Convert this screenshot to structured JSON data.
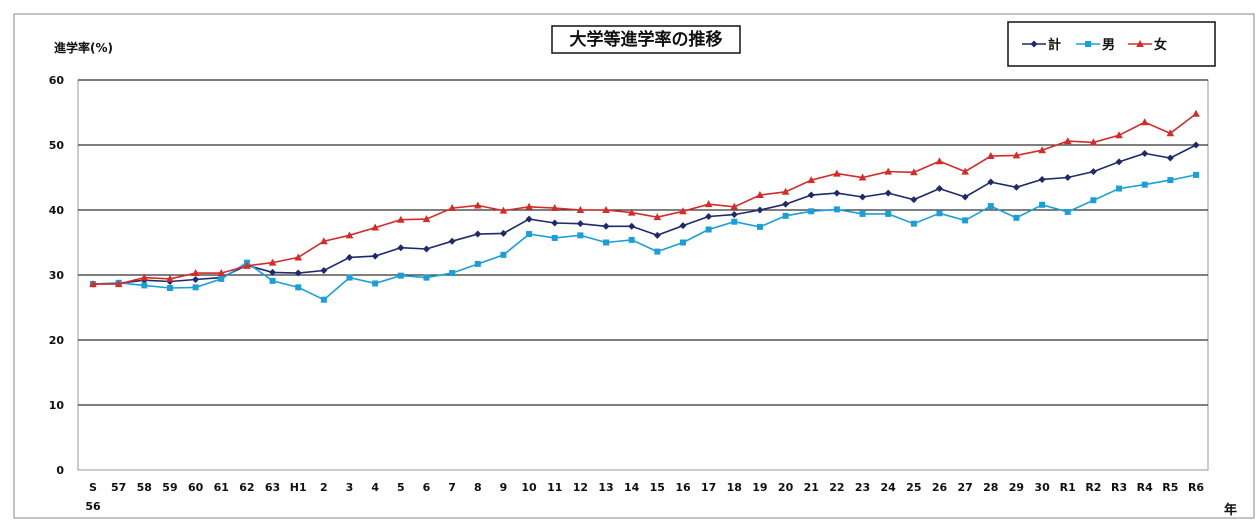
{
  "chart_data": {
    "type": "line",
    "title": "大学等進学率の推移",
    "ylabel": "進学率(%)",
    "xlabel": "年",
    "ylim": [
      0,
      60
    ],
    "yticks": [
      "0",
      "10",
      "20",
      "30",
      "40",
      "50",
      "60"
    ],
    "grid": true,
    "legend_position": "top-right",
    "categories": [
      "S 56",
      "57",
      "58",
      "59",
      "60",
      "61",
      "62",
      "63",
      "H1",
      "2",
      "3",
      "4",
      "5",
      "6",
      "7",
      "8",
      "9",
      "10",
      "11",
      "12",
      "13",
      "14",
      "15",
      "16",
      "17",
      "18",
      "19",
      "20",
      "21",
      "22",
      "23",
      "24",
      "25",
      "26",
      "27",
      "28",
      "29",
      "30",
      "R1",
      "R2",
      "R3",
      "R4",
      "R5",
      "R6"
    ],
    "category_labels": [
      "S",
      "57",
      "58",
      "59",
      "60",
      "61",
      "62",
      "63",
      "H1",
      "2",
      "3",
      "4",
      "5",
      "6",
      "7",
      "8",
      "9",
      "10",
      "11",
      "12",
      "13",
      "14",
      "15",
      "16",
      "17",
      "18",
      "19",
      "20",
      "21",
      "22",
      "23",
      "24",
      "25",
      "26",
      "27",
      "28",
      "29",
      "30",
      "R1",
      "R2",
      "R3",
      "R4",
      "R5",
      "R6"
    ],
    "first_category_sublabel": "56",
    "series": [
      {
        "name": "計",
        "color": "#1f2a6b",
        "marker": "diamond",
        "values": [
          28.6,
          28.7,
          29.2,
          29.0,
          29.3,
          29.6,
          31.5,
          30.4,
          30.3,
          30.7,
          32.7,
          32.9,
          34.2,
          34.0,
          35.2,
          36.3,
          36.4,
          38.6,
          38.0,
          37.9,
          37.5,
          37.5,
          36.1,
          37.6,
          39.0,
          39.3,
          40.0,
          40.9,
          42.3,
          42.6,
          42.0,
          42.6,
          41.6,
          43.3,
          42.0,
          44.3,
          43.5,
          44.7,
          45.0,
          45.9,
          47.4,
          48.7,
          48.0,
          50.0
        ]
      },
      {
        "name": "男",
        "color": "#1a9fd9",
        "marker": "square",
        "values": [
          28.6,
          28.8,
          28.4,
          28.0,
          28.1,
          29.4,
          31.9,
          29.1,
          28.1,
          26.2,
          29.6,
          28.7,
          29.9,
          29.6,
          30.3,
          31.7,
          33.1,
          36.3,
          35.7,
          36.1,
          35.0,
          35.4,
          33.6,
          35.0,
          37.0,
          38.2,
          37.4,
          39.1,
          39.8,
          40.1,
          39.4,
          39.4,
          37.9,
          39.5,
          38.4,
          40.6,
          38.8,
          40.8,
          39.7,
          41.5,
          43.3,
          43.9,
          44.6,
          45.4
        ]
      },
      {
        "name": "女",
        "color": "#d42b2b",
        "marker": "triangle",
        "values": [
          28.6,
          28.6,
          29.6,
          29.4,
          30.3,
          30.3,
          31.4,
          31.9,
          32.7,
          35.2,
          36.1,
          37.3,
          38.5,
          38.6,
          40.3,
          40.7,
          39.9,
          40.5,
          40.3,
          40.0,
          40.0,
          39.6,
          38.9,
          39.8,
          40.9,
          40.5,
          42.3,
          42.8,
          44.6,
          45.6,
          45.0,
          45.9,
          45.8,
          47.5,
          45.9,
          48.3,
          48.4,
          49.2,
          50.6,
          50.4,
          51.5,
          53.5,
          51.8,
          54.8
        ]
      }
    ]
  }
}
